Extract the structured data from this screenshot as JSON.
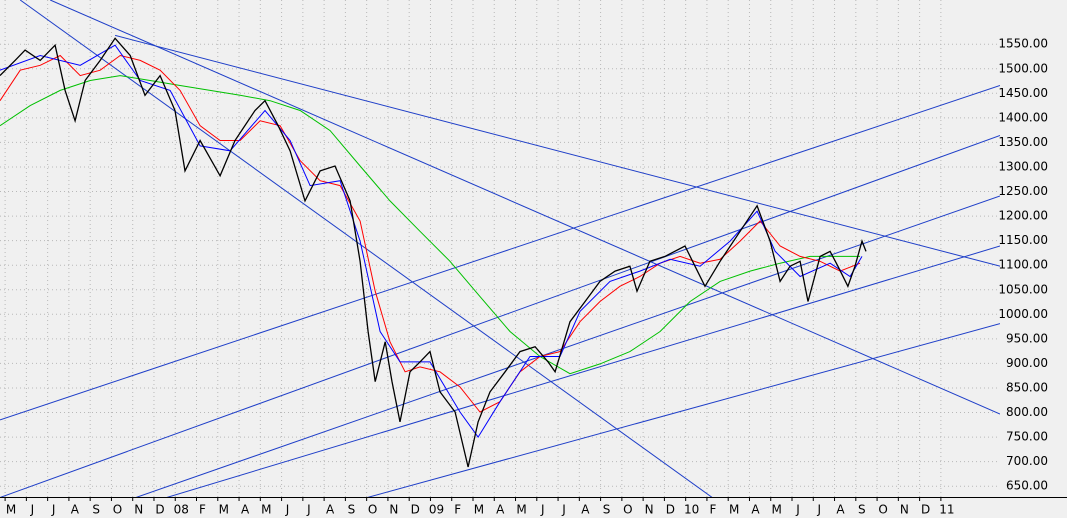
{
  "chart_data": {
    "type": "line",
    "grid": true,
    "trendline_color": "#1f3fc8",
    "xlim": [
      -0.24,
      46.78
    ],
    "ylim": [
      628,
      1640
    ],
    "xticks": [
      {
        "value": 0,
        "label": "M"
      },
      {
        "value": 1,
        "label": "J"
      },
      {
        "value": 2,
        "label": "J"
      },
      {
        "value": 3,
        "label": "A"
      },
      {
        "value": 4,
        "label": "S"
      },
      {
        "value": 5,
        "label": "O"
      },
      {
        "value": 6,
        "label": "N"
      },
      {
        "value": 7,
        "label": "D"
      },
      {
        "value": 8,
        "label": "08"
      },
      {
        "value": 9,
        "label": "F"
      },
      {
        "value": 10,
        "label": "M"
      },
      {
        "value": 11,
        "label": "A"
      },
      {
        "value": 12,
        "label": "M"
      },
      {
        "value": 13,
        "label": "J"
      },
      {
        "value": 14,
        "label": "J"
      },
      {
        "value": 15,
        "label": "A"
      },
      {
        "value": 16,
        "label": "S"
      },
      {
        "value": 17,
        "label": "O"
      },
      {
        "value": 18,
        "label": "N"
      },
      {
        "value": 19,
        "label": "D"
      },
      {
        "value": 20,
        "label": "09"
      },
      {
        "value": 21,
        "label": "F"
      },
      {
        "value": 22,
        "label": "M"
      },
      {
        "value": 23,
        "label": "A"
      },
      {
        "value": 24,
        "label": "M"
      },
      {
        "value": 25,
        "label": "J"
      },
      {
        "value": 26,
        "label": "J"
      },
      {
        "value": 27,
        "label": "A"
      },
      {
        "value": 28,
        "label": "S"
      },
      {
        "value": 29,
        "label": "O"
      },
      {
        "value": 30,
        "label": "N"
      },
      {
        "value": 31,
        "label": "D"
      },
      {
        "value": 32,
        "label": "10"
      },
      {
        "value": 33,
        "label": "F"
      },
      {
        "value": 34,
        "label": "M"
      },
      {
        "value": 35,
        "label": "A"
      },
      {
        "value": 36,
        "label": "M"
      },
      {
        "value": 37,
        "label": "J"
      },
      {
        "value": 38,
        "label": "J"
      },
      {
        "value": 39,
        "label": "A"
      },
      {
        "value": 40,
        "label": "S"
      },
      {
        "value": 41,
        "label": "O"
      },
      {
        "value": 42,
        "label": "N"
      },
      {
        "value": 43,
        "label": "D"
      },
      {
        "value": 44,
        "label": "11"
      }
    ],
    "yticks": [
      {
        "value": 650,
        "label": "650.00"
      },
      {
        "value": 700,
        "label": "700.00"
      },
      {
        "value": 750,
        "label": "750.00"
      },
      {
        "value": 800,
        "label": "800.00"
      },
      {
        "value": 850,
        "label": "850.00"
      },
      {
        "value": 900,
        "label": "900.00"
      },
      {
        "value": 950,
        "label": "950.00"
      },
      {
        "value": 1000,
        "label": "1000.00"
      },
      {
        "value": 1050,
        "label": "1050.00"
      },
      {
        "value": 1100,
        "label": "1100.00"
      },
      {
        "value": 1150,
        "label": "1150.00"
      },
      {
        "value": 1200,
        "label": "1200.00"
      },
      {
        "value": 1250,
        "label": "1250.00"
      },
      {
        "value": 1300,
        "label": "1300.00"
      },
      {
        "value": 1350,
        "label": "1350.00"
      },
      {
        "value": 1400,
        "label": "1400.00"
      },
      {
        "value": 1450,
        "label": "1450.00"
      },
      {
        "value": 1500,
        "label": "1500.00"
      },
      {
        "value": 1550,
        "label": "1550.00"
      }
    ],
    "series": [
      {
        "color": "#00c000",
        "x": [
          -0.24,
          1.18,
          2.59,
          4.0,
          5.41,
          6.82,
          8.23,
          9.64,
          11.05,
          12.46,
          13.87,
          15.28,
          16.69,
          18.1,
          19.51,
          20.92,
          22.33,
          23.74,
          25.15,
          26.56,
          27.97,
          29.38,
          30.8,
          32.21,
          33.62,
          35.03,
          36.44,
          37.85,
          39.26,
          40.2
        ],
        "values": [
          1384,
          1425,
          1456,
          1476,
          1486,
          1476,
          1466,
          1456,
          1446,
          1435,
          1415,
          1374,
          1302,
          1231,
          1169,
          1108,
          1036,
          965,
          914,
          879,
          899,
          924,
          965,
          1026,
          1067,
          1088,
          1104,
          1118,
          1118,
          1118
        ]
      },
      {
        "color": "#ff0000",
        "x": [
          -0.24,
          0.71,
          1.65,
          2.59,
          3.53,
          4.47,
          5.41,
          6.35,
          7.29,
          8.23,
          9.17,
          10.11,
          11.05,
          11.99,
          12.93,
          13.87,
          14.81,
          15.75,
          16.69,
          17.4,
          18.1,
          18.81,
          19.51,
          20.45,
          21.39,
          22.33,
          23.27,
          24.21,
          25.15,
          26.09,
          27.03,
          27.97,
          28.91,
          29.85,
          30.8,
          31.74,
          32.68,
          33.62,
          34.56,
          35.5,
          36.44,
          37.38,
          38.32,
          39.26,
          40.2
        ],
        "values": [
          1435,
          1497,
          1507,
          1527,
          1486,
          1497,
          1527,
          1517,
          1497,
          1456,
          1384,
          1354,
          1354,
          1394,
          1384,
          1313,
          1272,
          1262,
          1190,
          1047,
          944,
          883,
          893,
          883,
          852,
          801,
          822,
          883,
          914,
          924,
          985,
          1026,
          1057,
          1077,
          1104,
          1118,
          1104,
          1112,
          1149,
          1190,
          1139,
          1118,
          1108,
          1088,
          1104
        ]
      },
      {
        "color": "#0000ff",
        "x": [
          -0.24,
          1.65,
          3.53,
          5.17,
          6.35,
          7.76,
          9.17,
          10.58,
          12.22,
          13.4,
          14.34,
          15.75,
          16.69,
          17.63,
          18.57,
          19.98,
          21.39,
          22.24,
          23.27,
          24.68,
          26.09,
          27.03,
          28.44,
          29.85,
          31.27,
          32.68,
          34.09,
          35.36,
          36.21,
          37.38,
          38.79,
          39.73,
          40.29
        ],
        "values": [
          1497,
          1527,
          1507,
          1548,
          1476,
          1456,
          1343,
          1333,
          1415,
          1354,
          1262,
          1272,
          1149,
          965,
          903,
          903,
          801,
          750,
          822,
          914,
          914,
          1006,
          1067,
          1088,
          1112,
          1098,
          1149,
          1210,
          1128,
          1077,
          1104,
          1077,
          1118
        ]
      },
      {
        "color": "#000000",
        "x": [
          -0.24,
          0.47,
          0.94,
          1.65,
          2.35,
          2.82,
          3.29,
          3.76,
          4.47,
          5.17,
          5.88,
          6.58,
          7.29,
          7.99,
          8.46,
          9.17,
          10.11,
          10.81,
          11.75,
          12.22,
          12.84,
          13.4,
          14.1,
          14.81,
          15.51,
          16.22,
          16.69,
          17.07,
          17.4,
          17.87,
          18.19,
          18.57,
          19.04,
          19.51,
          19.98,
          20.45,
          21.16,
          21.77,
          22.24,
          22.8,
          23.51,
          24.21,
          24.92,
          25.53,
          25.86,
          26.56,
          27.27,
          27.97,
          28.68,
          29.38,
          29.71,
          30.32,
          31.03,
          31.97,
          32.44,
          32.91,
          33.62,
          34.56,
          35.36,
          35.97,
          36.44,
          36.91,
          37.38,
          37.75,
          38.32,
          38.79,
          39.16,
          39.63,
          39.96,
          40.29,
          40.48
        ],
        "values": [
          1486,
          1517,
          1538,
          1517,
          1548,
          1456,
          1394,
          1476,
          1517,
          1562,
          1527,
          1446,
          1486,
          1415,
          1292,
          1354,
          1282,
          1354,
          1415,
          1435,
          1384,
          1333,
          1231,
          1292,
          1302,
          1231,
          1108,
          965,
          863,
          944,
          863,
          781,
          883,
          903,
          924,
          842,
          801,
          689,
          781,
          842,
          883,
          924,
          934,
          903,
          883,
          985,
          1026,
          1067,
          1088,
          1098,
          1047,
          1108,
          1118,
          1139,
          1098,
          1057,
          1108,
          1169,
          1221,
          1149,
          1067,
          1098,
          1108,
          1026,
          1118,
          1128,
          1098,
          1057,
          1098,
          1149,
          1128
        ]
      }
    ],
    "trendlines": [
      {
        "x": [
          2.12,
          46.78
        ],
        "values": [
          1640,
          797
        ]
      },
      {
        "x": [
          5.17,
          46.78
        ],
        "values": [
          1568,
          1098
        ]
      },
      {
        "x": [
          0.71,
          33.38
        ],
        "values": [
          1640,
          623
        ]
      },
      {
        "x": [
          -0.24,
          46.78
        ],
        "values": [
          785,
          1466
        ]
      },
      {
        "x": [
          -0.24,
          46.78
        ],
        "values": [
          627,
          1364
        ]
      },
      {
        "x": [
          5.88,
          46.78
        ],
        "values": [
          623,
          1241
        ]
      },
      {
        "x": [
          7.29,
          46.78
        ],
        "values": [
          623,
          1139
        ]
      },
      {
        "x": [
          16.69,
          46.78
        ],
        "values": [
          623,
          981
        ]
      }
    ]
  }
}
